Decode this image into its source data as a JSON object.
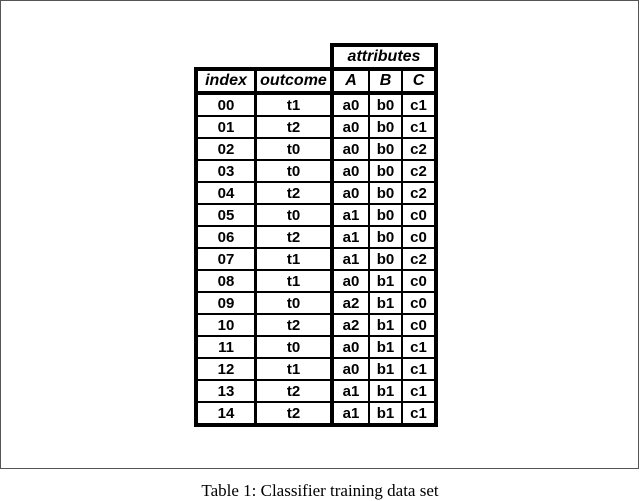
{
  "table": {
    "group_header": "attributes",
    "columns": [
      "index",
      "outcome",
      "A",
      "B",
      "C"
    ],
    "rows": [
      [
        "00",
        "t1",
        "a0",
        "b0",
        "c1"
      ],
      [
        "01",
        "t2",
        "a0",
        "b0",
        "c1"
      ],
      [
        "02",
        "t0",
        "a0",
        "b0",
        "c2"
      ],
      [
        "03",
        "t0",
        "a0",
        "b0",
        "c2"
      ],
      [
        "04",
        "t2",
        "a0",
        "b0",
        "c2"
      ],
      [
        "05",
        "t0",
        "a1",
        "b0",
        "c0"
      ],
      [
        "06",
        "t2",
        "a1",
        "b0",
        "c0"
      ],
      [
        "07",
        "t1",
        "a1",
        "b0",
        "c2"
      ],
      [
        "08",
        "t1",
        "a0",
        "b1",
        "c0"
      ],
      [
        "09",
        "t0",
        "a2",
        "b1",
        "c0"
      ],
      [
        "10",
        "t2",
        "a2",
        "b1",
        "c0"
      ],
      [
        "11",
        "t0",
        "a0",
        "b1",
        "c1"
      ],
      [
        "12",
        "t1",
        "a0",
        "b1",
        "c1"
      ],
      [
        "13",
        "t2",
        "a1",
        "b1",
        "c1"
      ],
      [
        "14",
        "t2",
        "a1",
        "b1",
        "c1"
      ]
    ]
  },
  "caption": "Table 1: Classifier training data set"
}
